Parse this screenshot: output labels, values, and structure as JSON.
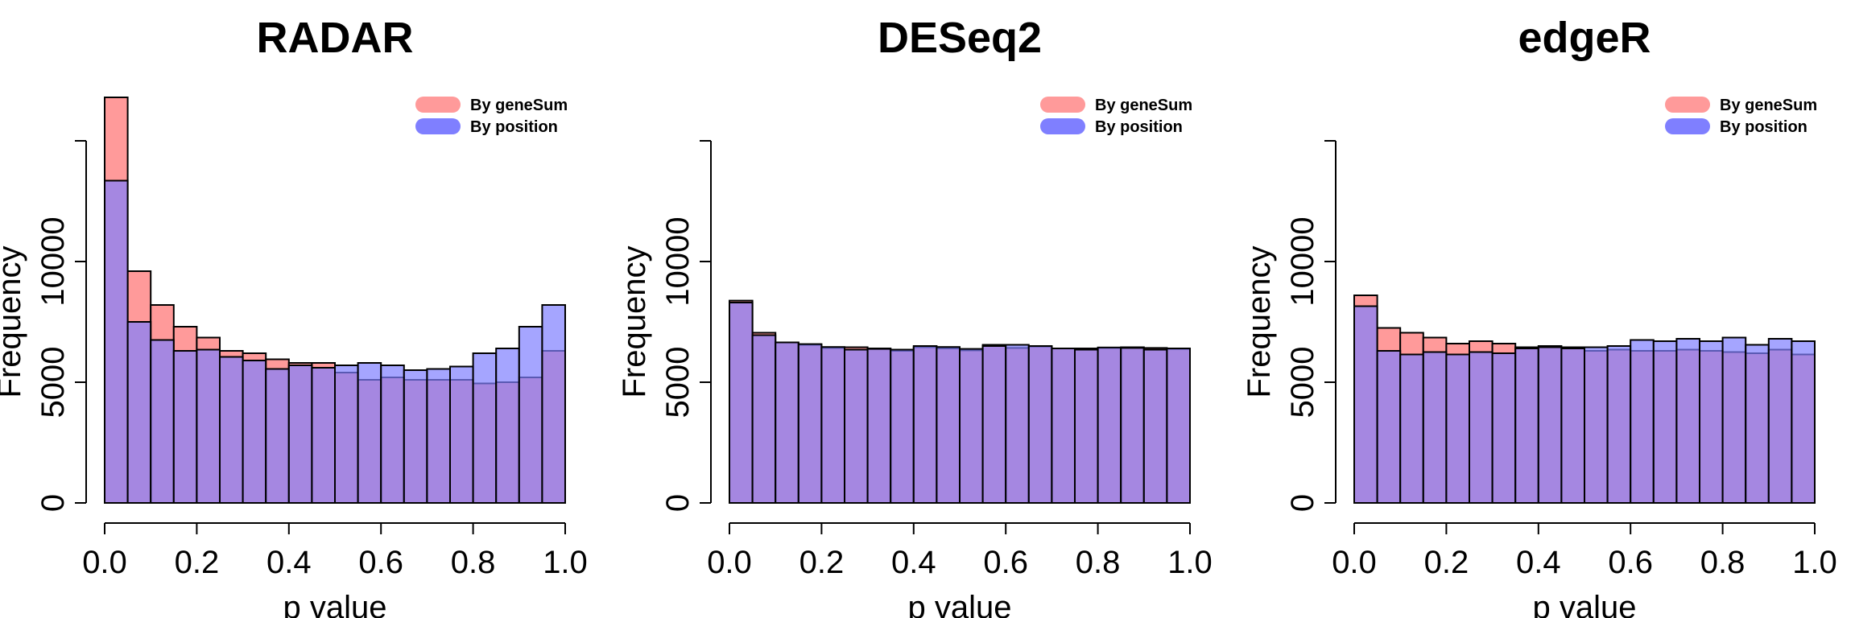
{
  "chart_data": [
    {
      "type": "histogram",
      "title": "RADAR",
      "xlabel": "p value",
      "ylabel": "Frequency",
      "xlim": [
        0,
        1
      ],
      "ylim": [
        0,
        15000
      ],
      "x_ticks": [
        "0.0",
        "0.2",
        "0.4",
        "0.6",
        "0.8",
        "1.0"
      ],
      "y_ticks": [
        "0",
        "5000",
        "10000"
      ],
      "bin_width": 0.05,
      "legend_position": "top-right",
      "series": [
        {
          "name": "By geneSum",
          "color": "#ff9a9a",
          "values": [
            16800,
            9600,
            8200,
            7300,
            6850,
            6300,
            6200,
            5950,
            5800,
            5800,
            5400,
            5100,
            5200,
            5100,
            5100,
            5100,
            4950,
            5000,
            5200,
            6300
          ]
        },
        {
          "name": "By position",
          "color": "#7f7fff",
          "values": [
            13350,
            7500,
            6750,
            6300,
            6350,
            6050,
            5900,
            5550,
            5700,
            5600,
            5700,
            5800,
            5700,
            5500,
            5550,
            5650,
            6200,
            6400,
            7300,
            8200
          ]
        }
      ]
    },
    {
      "type": "histogram",
      "title": "DESeq2",
      "xlabel": "p value",
      "ylabel": "Frequency",
      "xlim": [
        0,
        1
      ],
      "ylim": [
        0,
        15000
      ],
      "x_ticks": [
        "0.0",
        "0.2",
        "0.4",
        "0.6",
        "0.8",
        "1.0"
      ],
      "y_ticks": [
        "0",
        "5000",
        "10000"
      ],
      "bin_width": 0.05,
      "legend_position": "top-right",
      "series": [
        {
          "name": "By geneSum",
          "color": "#ff9a9a",
          "values": [
            8380,
            7050,
            6650,
            6550,
            6420,
            6450,
            6400,
            6300,
            6450,
            6400,
            6320,
            6550,
            6420,
            6480,
            6400,
            6400,
            6420,
            6450,
            6420,
            6380
          ]
        },
        {
          "name": "By position",
          "color": "#7f7fff",
          "values": [
            8300,
            6950,
            6650,
            6580,
            6460,
            6350,
            6380,
            6350,
            6500,
            6460,
            6380,
            6500,
            6550,
            6500,
            6400,
            6350,
            6440,
            6420,
            6350,
            6400
          ]
        }
      ]
    },
    {
      "type": "histogram",
      "title": "edgeR",
      "xlabel": "p value",
      "ylabel": "Frequency",
      "xlim": [
        0,
        1
      ],
      "ylim": [
        0,
        15000
      ],
      "x_ticks": [
        "0.0",
        "0.2",
        "0.4",
        "0.6",
        "0.8",
        "1.0"
      ],
      "y_ticks": [
        "0",
        "5000",
        "10000"
      ],
      "bin_width": 0.05,
      "legend_position": "top-right",
      "series": [
        {
          "name": "By geneSum",
          "color": "#ff9a9a",
          "values": [
            8600,
            7250,
            7050,
            6850,
            6600,
            6700,
            6600,
            6450,
            6500,
            6450,
            6300,
            6350,
            6300,
            6300,
            6350,
            6300,
            6250,
            6200,
            6350,
            6150
          ]
        },
        {
          "name": "By position",
          "color": "#7f7fff",
          "values": [
            8150,
            6300,
            6150,
            6250,
            6150,
            6250,
            6200,
            6400,
            6450,
            6400,
            6450,
            6500,
            6750,
            6700,
            6800,
            6700,
            6850,
            6550,
            6800,
            6700
          ]
        }
      ]
    }
  ]
}
